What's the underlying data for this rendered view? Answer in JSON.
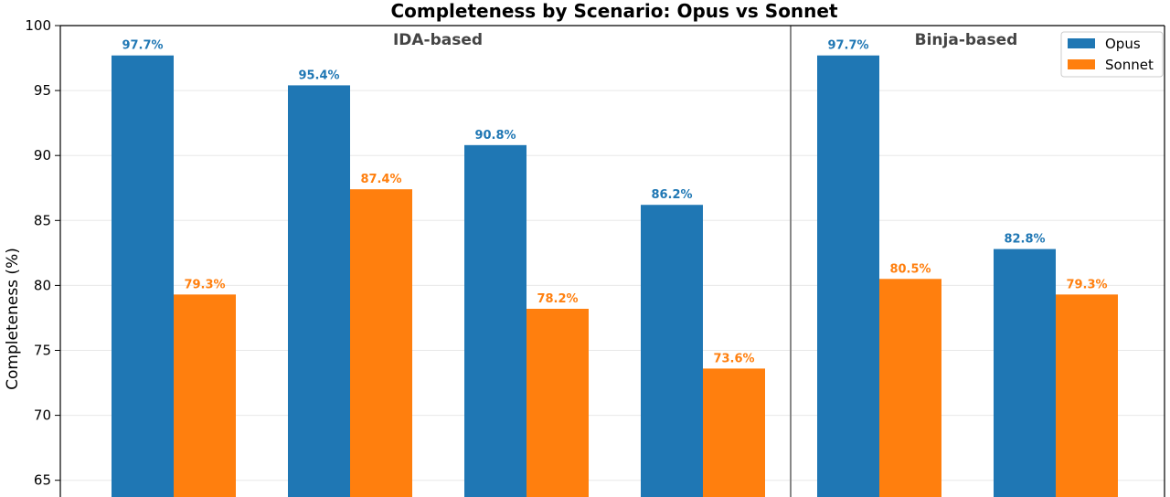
{
  "chart_data": {
    "type": "bar",
    "title": "Completeness by Scenario: Opus vs Sonnet",
    "ylabel": "Completeness (%)",
    "ylim": [
      65,
      100
    ],
    "yticks": [
      65,
      70,
      75,
      80,
      85,
      90,
      95,
      100
    ],
    "grid": true,
    "legend_position": "top-right",
    "groups": [
      {
        "label": "IDA-based"
      },
      {
        "label": "Binja-based"
      }
    ],
    "series": [
      {
        "name": "Opus",
        "color": "#1f77b4",
        "values": [
          97.7,
          95.4,
          90.8,
          86.2,
          97.7,
          82.8
        ],
        "labels": [
          "97.7%",
          "95.4%",
          "90.8%",
          "86.2%",
          "97.7%",
          "82.8%"
        ]
      },
      {
        "name": "Sonnet",
        "color": "#ff7f0e",
        "values": [
          79.3,
          87.4,
          78.2,
          73.6,
          80.5,
          79.3
        ],
        "labels": [
          "79.3%",
          "87.4%",
          "78.2%",
          "73.6%",
          "80.5%",
          "79.3%"
        ]
      }
    ]
  }
}
